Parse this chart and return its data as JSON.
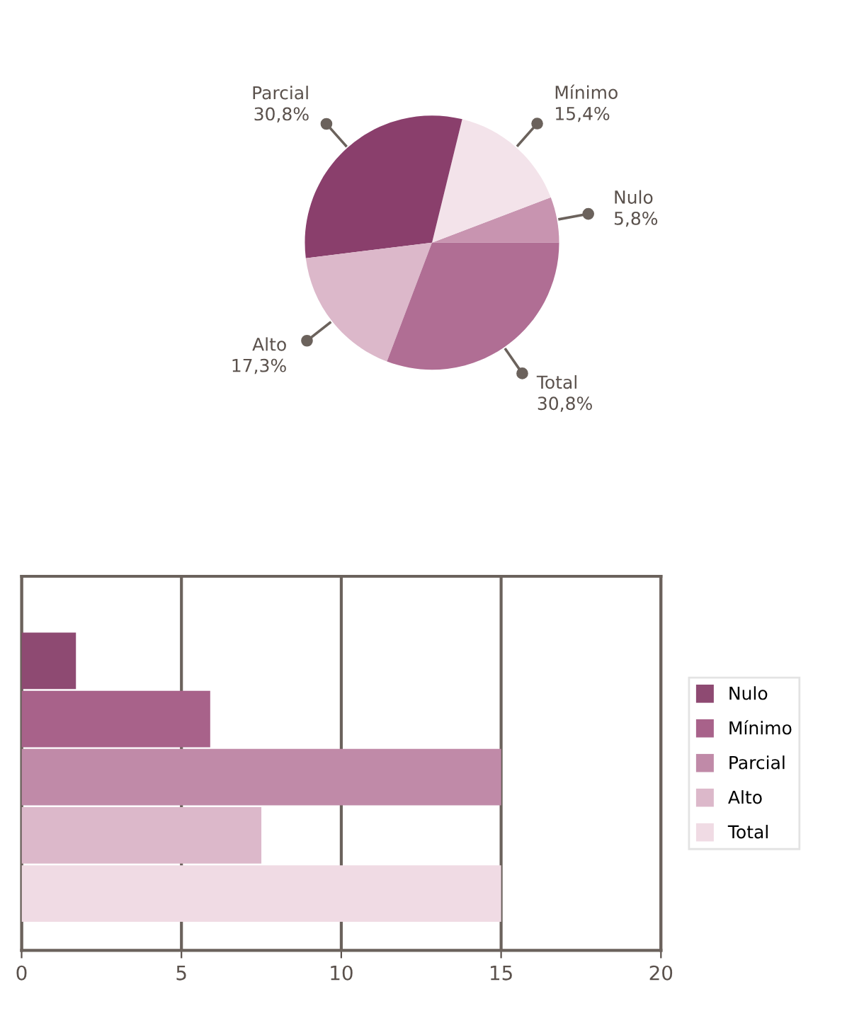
{
  "chart_data": [
    {
      "type": "pie",
      "categories": [
        "Nulo",
        "Mínimo",
        "Parcial",
        "Alto",
        "Total"
      ],
      "values": [
        5.8,
        15.4,
        30.8,
        17.3,
        30.8
      ],
      "value_labels": [
        "5,8%",
        "15,4%",
        "30,8%",
        "17,3%",
        "30,8%"
      ],
      "colors": [
        "#c894b0",
        "#f3e3ea",
        "#8a3f6c",
        "#dcb8ca",
        "#b06e94"
      ]
    },
    {
      "type": "bar",
      "orientation": "horizontal",
      "categories": [
        null
      ],
      "series": [
        {
          "name": "Nulo",
          "color": "#8e4a72",
          "values": [
            1.7
          ]
        },
        {
          "name": "Mínimo",
          "color": "#a8628a",
          "values": [
            5.9
          ]
        },
        {
          "name": "Parcial",
          "color": "#c08aa8",
          "values": [
            15
          ]
        },
        {
          "name": "Alto",
          "color": "#dcb8ca",
          "values": [
            7.5
          ]
        },
        {
          "name": "Total",
          "color": "#f0dbe4",
          "values": [
            15
          ]
        }
      ],
      "xlim": [
        0,
        20
      ],
      "xticks": [
        0,
        5,
        10,
        15,
        20
      ],
      "grid": "x",
      "legend": "right",
      "tick_labels": "x"
    }
  ]
}
